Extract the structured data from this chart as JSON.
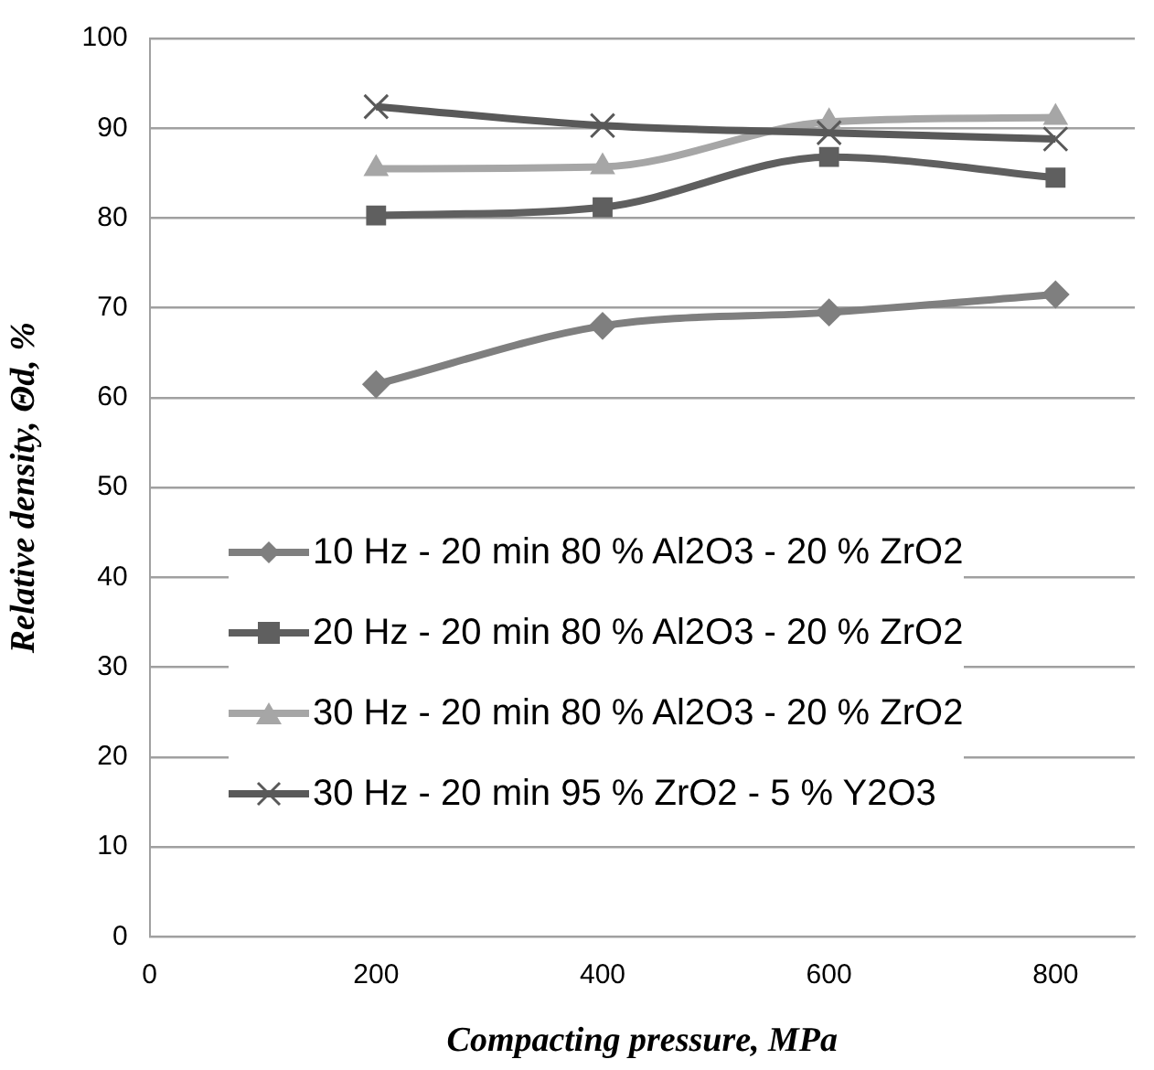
{
  "chart_data": {
    "type": "line",
    "xlabel": "Compacting pressure, MPa",
    "ylabel": "Relative density, Θd, %",
    "x": [
      200,
      400,
      600,
      800
    ],
    "series": [
      {
        "name": "10 Hz - 20 min 80 % Al2O3 - 20 % ZrO2",
        "color": "#7f7f7f",
        "marker": "diamond",
        "values": [
          61.5,
          68,
          69.5,
          71.5
        ]
      },
      {
        "name": "20 Hz - 20 min 80 % Al2O3 - 20 % ZrO2",
        "color": "#5f5f5f",
        "marker": "square",
        "values": [
          80.3,
          81.2,
          86.8,
          84.5
        ]
      },
      {
        "name": "30 Hz - 20 min 80 % Al2O3 - 20 % ZrO2",
        "color": "#a6a6a6",
        "marker": "triangle",
        "values": [
          85.5,
          85.7,
          90.7,
          91.2
        ]
      },
      {
        "name": "30 Hz - 20 min 95 % ZrO2 - 5 % Y2O3",
        "color": "#595959",
        "marker": "cross",
        "values": [
          92.4,
          90.3,
          89.5,
          88.8
        ]
      }
    ],
    "xlim": [
      0,
      870
    ],
    "xticks": [
      0,
      200,
      400,
      600,
      800
    ],
    "ylim": [
      0,
      100
    ],
    "yticks": [
      0,
      10,
      20,
      30,
      40,
      50,
      60,
      70,
      80,
      90,
      100
    ],
    "grid": "y",
    "legend": "bottom"
  }
}
